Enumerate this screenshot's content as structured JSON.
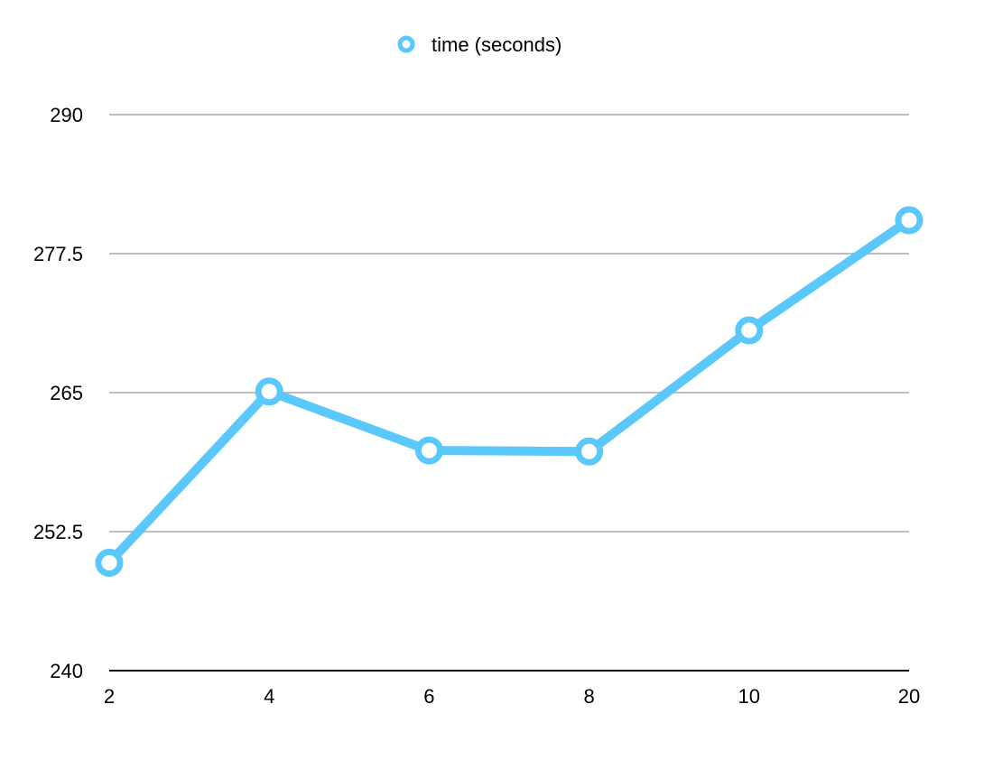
{
  "chart_data": {
    "type": "line",
    "x": [
      "2",
      "4",
      "6",
      "8",
      "10",
      "20"
    ],
    "series": [
      {
        "name": "time (seconds)",
        "values": [
          249.7,
          265.1,
          259.8,
          259.7,
          270.6,
          280.5
        ],
        "color": "#5AC8FA"
      }
    ],
    "ylim": [
      240,
      290
    ],
    "yticks": [
      "240",
      "252.5",
      "265",
      "277.5",
      "290"
    ],
    "grid": true,
    "legend": "top-center",
    "colors": {
      "grid": "#BDBDBD",
      "axis": "#000000"
    }
  }
}
